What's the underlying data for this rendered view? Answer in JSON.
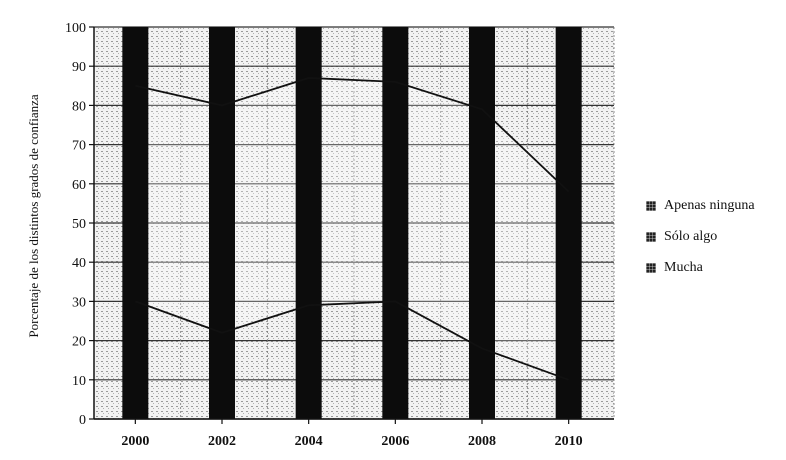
{
  "chart_data": {
    "type": "bar",
    "title": "",
    "xlabel": "",
    "ylabel": "Porcentaje de los distintos grados de confianza",
    "ylim": [
      0,
      100
    ],
    "yticks": [
      0,
      10,
      20,
      30,
      40,
      50,
      60,
      70,
      80,
      90,
      100
    ],
    "stacked": true,
    "categories": [
      "2000",
      "2002",
      "2004",
      "2006",
      "2008",
      "2010"
    ],
    "series": [
      {
        "name": "Apenas ninguna",
        "values": [
          30,
          22,
          29,
          30,
          18,
          10
        ],
        "color": "#b8b8b8"
      },
      {
        "name": "Sólo algo",
        "values": [
          55,
          58,
          58,
          56,
          61,
          48
        ],
        "color": "#d8d8d8"
      },
      {
        "name": "Mucha",
        "values": [
          15,
          20,
          13,
          14,
          21,
          42
        ],
        "color": "#111111"
      }
    ],
    "grid": true,
    "legend_position": "right"
  }
}
